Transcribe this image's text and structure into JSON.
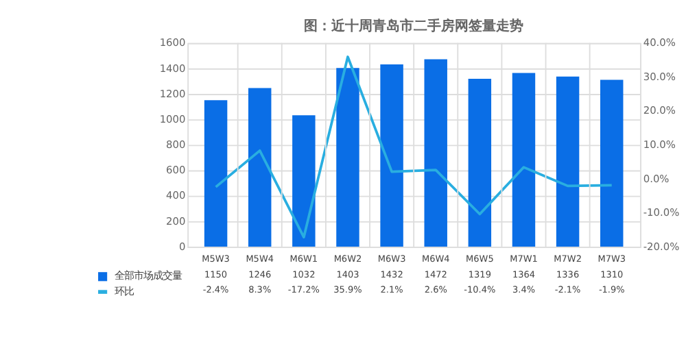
{
  "chart_data": {
    "type": "bar",
    "title": "图：近十周青岛市二手房网签量走势",
    "categories": [
      "M5W3",
      "M5W4",
      "M6W1",
      "M6W2",
      "M6W3",
      "M6W4",
      "M6W5",
      "M7W1",
      "M7W2",
      "M7W3"
    ],
    "series": [
      {
        "name": "全部市场成交量",
        "color": "#0a6ee6",
        "values": [
          1150,
          1246,
          1032,
          1403,
          1432,
          1472,
          1319,
          1364,
          1336,
          1310
        ],
        "value_labels": [
          "1150",
          "1246",
          "1032",
          "1403",
          "1432",
          "1472",
          "1319",
          "1364",
          "1336",
          "1310"
        ]
      },
      {
        "name": "环比",
        "type": "line",
        "axis": "y2",
        "color": "#29aee0",
        "values": [
          -2.4,
          8.3,
          -17.2,
          35.9,
          2.1,
          2.6,
          -10.4,
          3.4,
          -2.1,
          -1.9
        ],
        "value_labels": [
          "-2.4%",
          "8.3%",
          "-17.2%",
          "35.9%",
          "2.1%",
          "2.6%",
          "-10.4%",
          "3.4%",
          "-2.1%",
          "-1.9%"
        ]
      }
    ],
    "ylim": [
      0,
      1600
    ],
    "yticks": [
      0,
      200,
      400,
      600,
      800,
      1000,
      1200,
      1400,
      1600
    ],
    "y2lim": [
      -20,
      40
    ],
    "y2ticks": [
      {
        "value": -20,
        "label": "-20.0%"
      },
      {
        "value": -10,
        "label": "-10.0%"
      },
      {
        "value": 0,
        "label": "0.0%"
      },
      {
        "value": 10,
        "label": "10.0%"
      },
      {
        "value": 20,
        "label": "20.0%"
      },
      {
        "value": 30,
        "label": "30.0%"
      },
      {
        "value": 40,
        "label": "40.0%"
      }
    ],
    "grid": true,
    "legend": "bottom left",
    "marker": "none",
    "line_style": "solid"
  }
}
